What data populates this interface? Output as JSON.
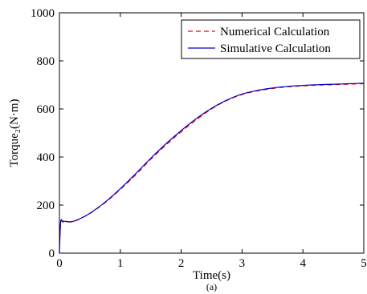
{
  "chart_data": {
    "type": "line",
    "xlabel": "Time(s)",
    "ylabel": "Torque₂(N·m)",
    "caption": "(a)",
    "xlim": [
      0,
      5
    ],
    "ylim": [
      0,
      1000
    ],
    "x_ticks": [
      "0",
      "1",
      "2",
      "3",
      "4",
      "5"
    ],
    "y_ticks": [
      "0",
      "200",
      "400",
      "600",
      "800",
      "1000"
    ],
    "x_tick_values": [
      0,
      1,
      2,
      3,
      4,
      5
    ],
    "y_tick_values": [
      0,
      200,
      400,
      600,
      800,
      1000
    ],
    "grid": false,
    "legend_position": "top-right",
    "series": [
      {
        "name": "Numerical Calculation",
        "color": "#ff0000",
        "style": "dashed",
        "x": [
          0.0,
          0.02,
          0.05,
          0.1,
          0.2,
          0.3,
          0.5,
          0.75,
          1.0,
          1.25,
          1.5,
          1.75,
          2.0,
          2.25,
          2.5,
          2.75,
          3.0,
          3.25,
          3.5,
          3.75,
          4.0,
          4.25,
          4.5,
          4.75,
          5.0
        ],
        "y": [
          0,
          125,
          130,
          130,
          130,
          138,
          165,
          210,
          265,
          325,
          390,
          450,
          505,
          555,
          600,
          635,
          660,
          675,
          685,
          692,
          696,
          699,
          701,
          703,
          705
        ]
      },
      {
        "name": "Simulative Calculation",
        "color": "#0000cd",
        "style": "solid",
        "x": [
          0.0,
          0.02,
          0.05,
          0.1,
          0.2,
          0.3,
          0.5,
          0.75,
          1.0,
          1.25,
          1.5,
          1.75,
          2.0,
          2.25,
          2.5,
          2.75,
          3.0,
          3.25,
          3.5,
          3.75,
          4.0,
          4.25,
          4.5,
          4.75,
          5.0
        ],
        "y": [
          0,
          128,
          133,
          132,
          131,
          139,
          166,
          212,
          268,
          330,
          395,
          455,
          510,
          560,
          603,
          637,
          662,
          677,
          687,
          694,
          698,
          701,
          703,
          705,
          707
        ]
      }
    ]
  }
}
